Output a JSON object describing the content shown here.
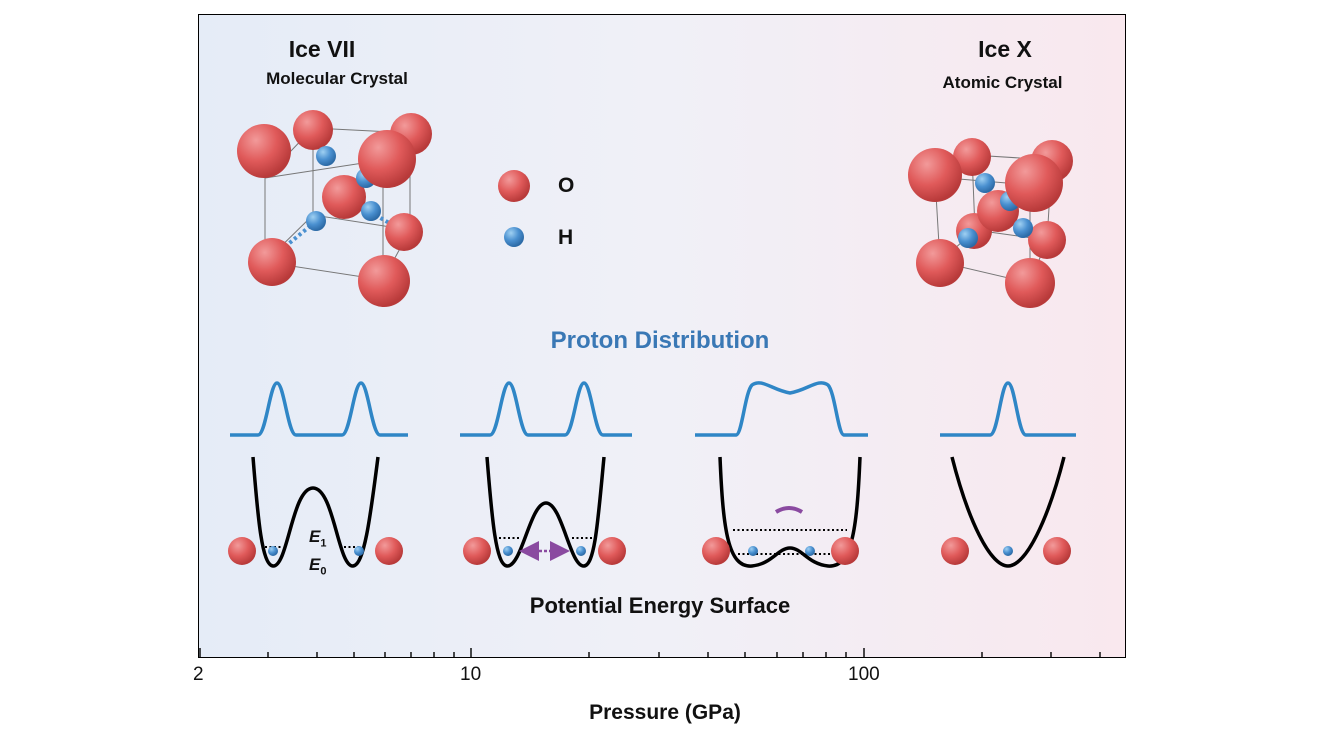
{
  "phases": {
    "left": {
      "name": "Ice VII",
      "subtitle": "Molecular Crystal"
    },
    "right": {
      "name": "Ice X",
      "subtitle": "Atomic Crystal"
    }
  },
  "legend": {
    "oxygen": "O",
    "hydrogen": "H"
  },
  "sections": {
    "proton_distribution": "Proton Distribution",
    "potential_energy_surface": "Potential Energy Surface"
  },
  "energy_levels": {
    "e1": "E",
    "e1_sub": "1",
    "e0": "E",
    "e0_sub": "0"
  },
  "axis": {
    "label": "Pressure (GPa)",
    "scale": "log",
    "ticks": [
      "2",
      "10",
      "100"
    ]
  },
  "colors": {
    "oxygen": "#e05a5a",
    "hydrogen": "#4a90d0",
    "proton_curve": "#2f86c6",
    "pes_curve": "#000000",
    "tunneling_arrow": "#8a4aa0",
    "background_left": "#e5ecf7",
    "background_right": "#f9e8ee"
  }
}
